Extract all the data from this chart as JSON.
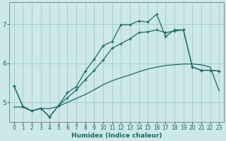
{
  "xlabel": "Humidex (Indice chaleur)",
  "bg_color": "#cce8e8",
  "grid_color": "#aacccc",
  "line_color": "#1a6868",
  "xlim": [
    -0.5,
    23.5
  ],
  "ylim": [
    4.5,
    7.55
  ],
  "xticks": [
    0,
    1,
    2,
    3,
    4,
    5,
    6,
    7,
    8,
    9,
    10,
    11,
    12,
    13,
    14,
    15,
    16,
    17,
    18,
    19,
    20,
    21,
    22,
    23
  ],
  "yticks": [
    5,
    6,
    7
  ],
  "line1_x": [
    0,
    1,
    2,
    3,
    4,
    5,
    6,
    7,
    8,
    9,
    10,
    11,
    12,
    13,
    14,
    15,
    16,
    17,
    18,
    19,
    20,
    21,
    22,
    23
  ],
  "line1_y": [
    5.42,
    4.9,
    4.78,
    4.85,
    4.63,
    4.92,
    5.12,
    5.32,
    5.58,
    5.82,
    6.08,
    6.38,
    6.5,
    6.62,
    6.78,
    6.8,
    6.85,
    6.78,
    6.82,
    6.85,
    5.9,
    5.82,
    5.82,
    5.8
  ],
  "line2_x": [
    0,
    1,
    2,
    3,
    4,
    5,
    6,
    7,
    8,
    9,
    10,
    11,
    12,
    13,
    14,
    15,
    16,
    17,
    18,
    19,
    20,
    21,
    22,
    23
  ],
  "line2_y": [
    5.42,
    4.9,
    4.78,
    4.85,
    4.63,
    4.92,
    5.25,
    5.4,
    5.8,
    6.1,
    6.45,
    6.55,
    6.98,
    6.98,
    7.08,
    7.05,
    7.25,
    6.68,
    6.85,
    6.85,
    5.9,
    5.82,
    5.82,
    5.8
  ],
  "line3_x": [
    0,
    1,
    2,
    3,
    4,
    5,
    6,
    7,
    8,
    9,
    10,
    11,
    12,
    13,
    14,
    15,
    16,
    17,
    18,
    19,
    20,
    21,
    22,
    23
  ],
  "line3_y": [
    4.88,
    4.88,
    4.78,
    4.84,
    4.84,
    4.9,
    5.0,
    5.1,
    5.2,
    5.32,
    5.45,
    5.55,
    5.63,
    5.7,
    5.78,
    5.85,
    5.9,
    5.94,
    5.96,
    5.98,
    5.98,
    5.96,
    5.9,
    5.3
  ]
}
